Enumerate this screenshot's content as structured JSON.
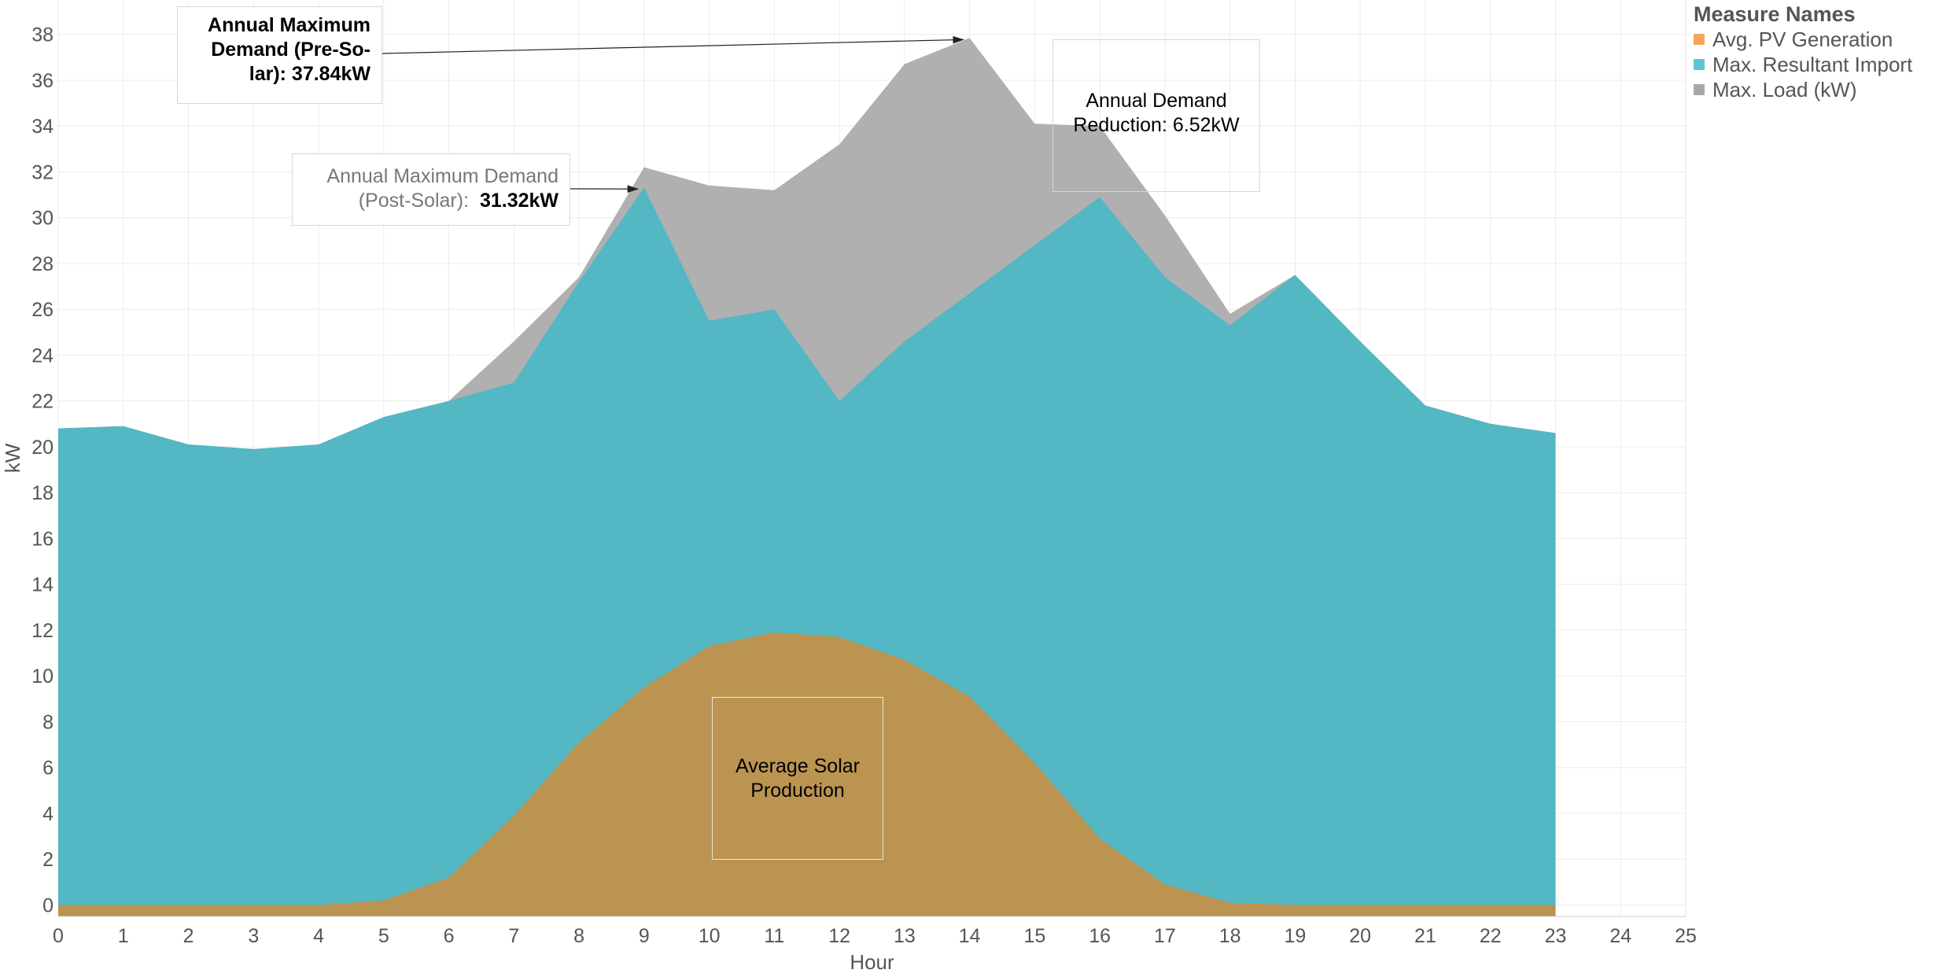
{
  "chart_data": {
    "type": "area",
    "title": "",
    "xlabel": "Hour",
    "ylabel": "kW",
    "xlim": [
      0,
      25
    ],
    "ylim": [
      -0.5,
      39.5
    ],
    "x_ticks": [
      0,
      1,
      2,
      3,
      4,
      5,
      6,
      7,
      8,
      9,
      10,
      11,
      12,
      13,
      14,
      15,
      16,
      17,
      18,
      19,
      20,
      21,
      22,
      23,
      24,
      25
    ],
    "y_ticks": [
      0,
      2,
      4,
      6,
      8,
      10,
      12,
      14,
      16,
      18,
      20,
      22,
      24,
      26,
      28,
      30,
      32,
      34,
      36,
      38
    ],
    "grid": true,
    "legend": {
      "title": "Measure Names",
      "placement": "right",
      "items": [
        {
          "label": "Avg. PV Generation",
          "color": "#f5a55a"
        },
        {
          "label": "Max. Resultant Import",
          "color": "#5bc7d4"
        },
        {
          "label": "Max. Load (kW)",
          "color": "#a8a8a8"
        }
      ]
    },
    "x": [
      0,
      1,
      2,
      3,
      4,
      5,
      6,
      7,
      8,
      9,
      10,
      11,
      12,
      13,
      14,
      15,
      16,
      17,
      18,
      19,
      20,
      21,
      22,
      23
    ],
    "series": [
      {
        "name": "Max. Load (kW)",
        "color": "#b0b0b0",
        "values": [
          20.8,
          20.9,
          20.1,
          19.9,
          20.1,
          21.3,
          22.0,
          24.6,
          27.4,
          32.2,
          31.4,
          31.2,
          33.2,
          36.7,
          37.84,
          34.1,
          34.0,
          30.1,
          25.8,
          27.5,
          24.6,
          21.8,
          21.0,
          20.6
        ]
      },
      {
        "name": "Max. Resultant Import",
        "color": "#53b7c4",
        "values": [
          20.8,
          20.9,
          20.1,
          19.9,
          20.1,
          21.3,
          22.0,
          22.8,
          27.2,
          31.32,
          25.5,
          26.0,
          22.0,
          24.6,
          26.7,
          28.8,
          30.9,
          27.4,
          25.3,
          27.5,
          24.6,
          21.8,
          21.0,
          20.6
        ]
      },
      {
        "name": "Avg. PV Generation",
        "color": "#bb9451",
        "values": [
          0,
          0,
          0,
          0,
          0,
          0.2,
          1.2,
          3.9,
          7.1,
          9.5,
          11.3,
          11.9,
          11.7,
          10.7,
          9.1,
          6.2,
          2.9,
          0.9,
          0.1,
          0,
          0,
          0,
          0,
          0
        ]
      }
    ],
    "annotations": [
      {
        "id": "pre",
        "lines": [
          "Annual Maximum",
          "Demand (Pre-So-",
          "lar): 37.84kW"
        ],
        "points_to": [
          14,
          37.84
        ]
      },
      {
        "id": "post",
        "line1": "Annual Maximum Demand",
        "line2_prefix": "(Post-Solar):",
        "line2_value": "31.32kW",
        "points_to": [
          9,
          31.32
        ]
      },
      {
        "id": "reduction",
        "lines": [
          "Annual Demand",
          "Reduction: 6.52kW"
        ]
      },
      {
        "id": "solar",
        "lines": [
          "Average Solar",
          "Production"
        ]
      }
    ]
  }
}
